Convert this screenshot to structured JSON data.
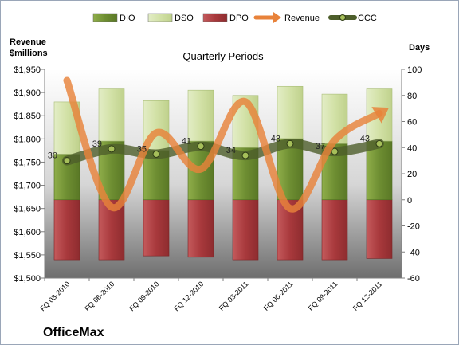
{
  "chart_data": {
    "type": "bar",
    "title": "Quarterly Periods",
    "company": "OfficeMax",
    "left_axis_label": [
      "Revenue",
      "$millions"
    ],
    "right_axis_label": "Days",
    "categories": [
      "FQ 03-2010",
      "FQ 06-2010",
      "FQ 09-2010",
      "FQ 12-2010",
      "FQ 03-2011",
      "FQ 06-2011",
      "FQ 09-2011",
      "FQ 12-2011"
    ],
    "left_axis": {
      "min": 1500,
      "max": 1950,
      "step": 50,
      "tick_labels": [
        "$1,500",
        "$1,550",
        "$1,600",
        "$1,650",
        "$1,700",
        "$1,750",
        "$1,800",
        "$1,850",
        "$1,900",
        "$1,950"
      ]
    },
    "right_axis": {
      "min": -60,
      "max": 100,
      "step": 20,
      "tick_labels": [
        "-60",
        "-40",
        "-20",
        "0",
        "20",
        "40",
        "60",
        "80",
        "100"
      ]
    },
    "legend": {
      "position": "top",
      "entries": [
        "DIO",
        "DSO",
        "DPO",
        "Revenue",
        "CCC"
      ]
    },
    "series": [
      {
        "name": "DIO",
        "axis": "right",
        "type": "stacked-bar",
        "values": [
          35,
          45,
          38,
          45,
          40,
          47,
          43,
          45
        ]
      },
      {
        "name": "DSO",
        "axis": "right",
        "type": "stacked-bar",
        "values": [
          40,
          40,
          38,
          39,
          40,
          40,
          38,
          40
        ]
      },
      {
        "name": "DPO",
        "axis": "right",
        "type": "negative-bar",
        "values": [
          -46,
          -46,
          -43,
          -44,
          -46,
          -46,
          -46,
          -45
        ]
      },
      {
        "name": "Revenue",
        "axis": "left",
        "type": "line",
        "values": [
          1926,
          1653,
          1813,
          1735,
          1880,
          1650,
          1797,
          1855
        ]
      },
      {
        "name": "CCC",
        "axis": "right",
        "type": "line",
        "values": [
          30,
          39,
          35,
          41,
          34,
          43,
          37,
          43
        ],
        "labels": [
          "30",
          "39",
          "35",
          "41",
          "34",
          "43",
          "37",
          "43"
        ]
      }
    ],
    "colors": {
      "DIO": "#7a9a3a",
      "DSO": "#d3e2a8",
      "DPO": "#b5484a",
      "Revenue": "#e8823a",
      "CCC": "#4d5e2b"
    },
    "grid": false
  }
}
